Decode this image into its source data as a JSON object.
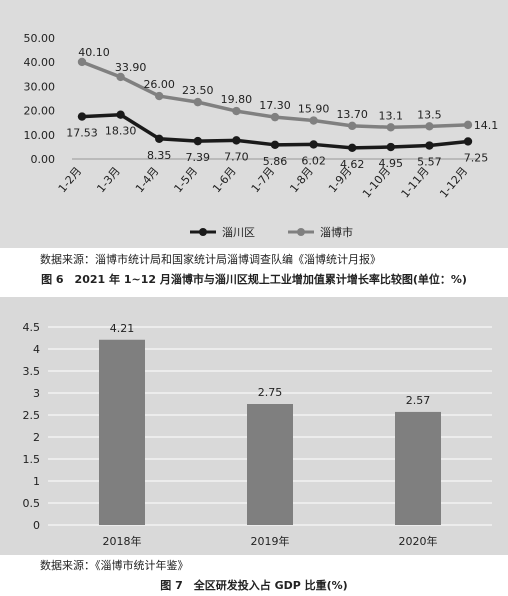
{
  "chart_data": [
    {
      "type": "line",
      "categories": [
        "1-2月",
        "1-3月",
        "1-4月",
        "1-5月",
        "1-6月",
        "1-7月",
        "1-8月",
        "1-9月",
        "1-10月",
        "1-11月",
        "1-12月"
      ],
      "series": [
        {
          "name": "淄川区",
          "values": [
            17.53,
            18.3,
            8.35,
            7.39,
            7.7,
            5.86,
            6.02,
            4.62,
            4.95,
            5.57,
            7.25
          ],
          "labels": [
            "17.53",
            "18.30",
            "8.35",
            "7.39",
            "7.70",
            "5.86",
            "6.02",
            "4.62",
            "4.95",
            "5.57",
            "7.25"
          ],
          "color": "#1a1a1a"
        },
        {
          "name": "淄博市",
          "values": [
            40.1,
            33.9,
            26.0,
            23.5,
            19.8,
            17.3,
            15.9,
            13.7,
            13.1,
            13.5,
            14.1
          ],
          "labels": [
            "40.10",
            "33.90",
            "26.00",
            "23.50",
            "19.80",
            "17.30",
            "15.90",
            "13.70",
            "13.1",
            "13.5",
            "14.1"
          ],
          "color": "#808080"
        }
      ],
      "ylim": [
        0,
        50
      ],
      "yticks": [
        "0.00",
        "10.00",
        "20.00",
        "30.00",
        "40.00",
        "50.00"
      ],
      "legend": "bottom",
      "grid": false
    },
    {
      "type": "bar",
      "categories": [
        "2018年",
        "2019年",
        "2020年"
      ],
      "values": [
        4.21,
        2.75,
        2.57
      ],
      "labels": [
        "4.21",
        "2.75",
        "2.57"
      ],
      "ylim": [
        0,
        4.5
      ],
      "yticks": [
        "0",
        "0.5",
        "1",
        "1.5",
        "2",
        "2.5",
        "3",
        "3.5",
        "4",
        "4.5"
      ],
      "color": "#7f7f7f",
      "grid": true
    }
  ],
  "captions": {
    "source1": "数据来源：淄博市统计局和国家统计局淄博调查队编《淄博统计月报》",
    "figure1": "图 6　2021 年 1~12 月淄博市与淄川区规上工业增加值累计增长率比较图(单位：%)",
    "source2": "数据来源：《淄博市统计年鉴》",
    "figure2": "图 7　全区研发投入占 GDP 比重(%)"
  }
}
